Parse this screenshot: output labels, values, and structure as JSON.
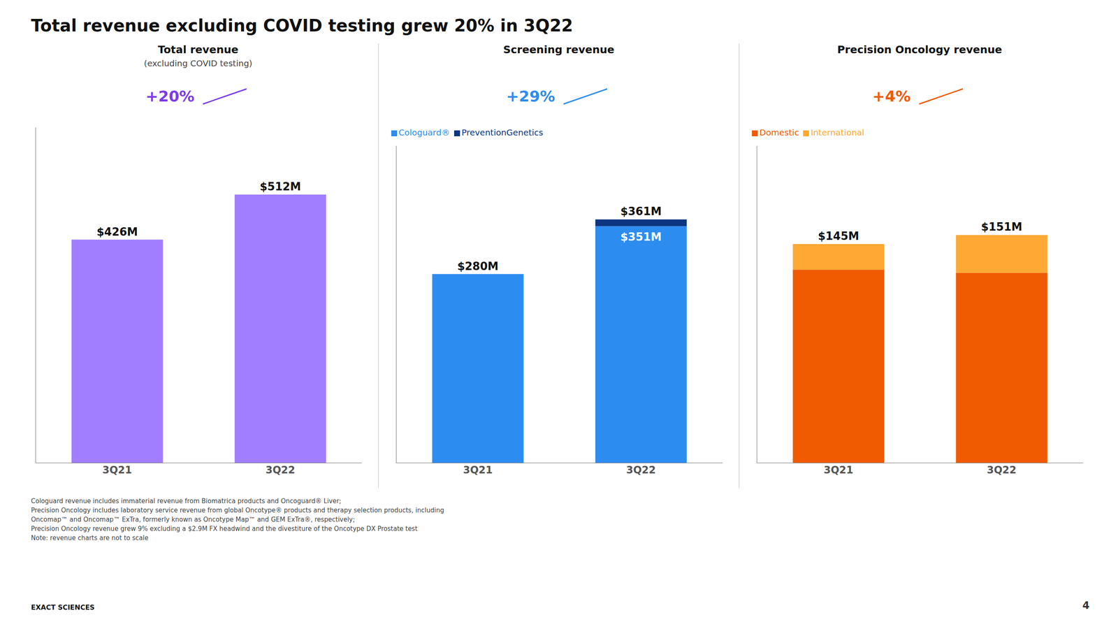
{
  "title": "Total revenue excluding COVID testing grew 20% in 3Q22",
  "footnotes": [
    "Cologuard revenue includes immaterial revenue from Biomatrica products and Oncoguard® Liver;",
    "Precision Oncology includes laboratory service revenue from global Oncotype® products and therapy selection products, including",
    "Oncomap™ and Oncomap™ ExTra, formerly known as Oncotype Map™ and GEM ExTra®, respectively;",
    "Precision Oncology revenue grew 9% excluding a $2.9M FX headwind and the divestiture of the Oncotype DX Prostate test",
    "Note: revenue charts are not to scale"
  ],
  "annotations": [
    "EXACT SCIENCES",
    "4"
  ],
  "chart_data": [
    {
      "type": "bar",
      "title": "Total revenue",
      "subtitle": "(excluding COVID testing)",
      "categories": [
        "3Q21",
        "3Q22"
      ],
      "values": [
        426,
        512
      ],
      "value_labels": [
        "$426M",
        "$512M"
      ],
      "color": "#a07eff",
      "ylim": [
        0,
        640
      ],
      "tick_labels": "x",
      "data_labels": true,
      "annotations": [
        {
          "text": "+20%",
          "color": "#7c3aed"
        }
      ]
    },
    {
      "type": "bar",
      "title": "Screening revenue",
      "categories": [
        "3Q21",
        "3Q22"
      ],
      "stacked": true,
      "series": [
        {
          "name": "Cologuard®",
          "color": "#2d8cf0",
          "values": [
            280,
            351
          ],
          "value_labels": [
            null,
            "$351M"
          ]
        },
        {
          "name": "PreventionGenetics",
          "color": "#0d3680",
          "values": [
            0,
            10
          ]
        }
      ],
      "totals": [
        280,
        361
      ],
      "total_labels": [
        "$280M",
        "$361M"
      ],
      "ylim": [
        0,
        470
      ],
      "tick_labels": "x",
      "legend": "upper left",
      "data_labels": true,
      "annotations": [
        {
          "text": "+29%",
          "color": "#2d8cf0"
        }
      ]
    },
    {
      "type": "bar",
      "title": "Precision Oncology revenue",
      "categories": [
        "3Q21",
        "3Q22"
      ],
      "stacked": true,
      "series": [
        {
          "name": "Domestic",
          "color": "#f05a00",
          "values": [
            128,
            126
          ]
        },
        {
          "name": "International",
          "color": "#ffa833",
          "values": [
            17,
            25
          ]
        }
      ],
      "totals": [
        145,
        151
      ],
      "total_labels": [
        "$145M",
        "$151M"
      ],
      "ylim": [
        0,
        210
      ],
      "tick_labels": "x",
      "legend": "upper left",
      "data_labels": true,
      "annotations": [
        {
          "text": "+4%",
          "color": "#f05a00"
        }
      ]
    }
  ]
}
